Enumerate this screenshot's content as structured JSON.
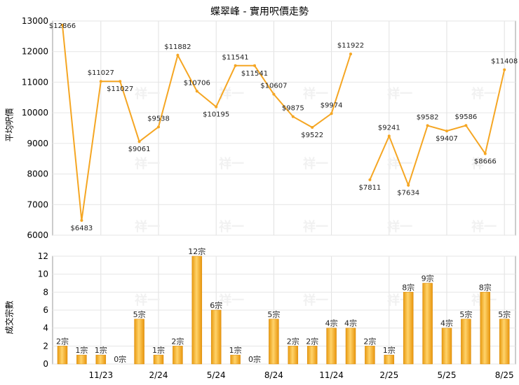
{
  "chart_data": [
    {
      "type": "line",
      "title": "蝶翠峰 - 實用呎價走勢",
      "ylabel": "平均呎價",
      "ylim": [
        6000,
        13000
      ],
      "yticks": [
        6000,
        7000,
        8000,
        9000,
        10000,
        11000,
        12000,
        13000
      ],
      "line_color": "#f5a623",
      "points": [
        {
          "x": 1,
          "y": 12866,
          "label": "$12866"
        },
        {
          "x": 2,
          "y": 6483,
          "label": "$6483"
        },
        {
          "x": 3,
          "y": 11027,
          "label": "$11027"
        },
        {
          "x": 4,
          "y": 11027,
          "label": "$11027"
        },
        {
          "x": 5,
          "y": 9061,
          "label": "$9061"
        },
        {
          "x": 6,
          "y": 9538,
          "label": "$9538"
        },
        {
          "x": 7,
          "y": 11882,
          "label": "$11882"
        },
        {
          "x": 8,
          "y": 10706,
          "label": "$10706"
        },
        {
          "x": 9,
          "y": 10195,
          "label": "$10195"
        },
        {
          "x": 10,
          "y": 11541,
          "label": "$11541"
        },
        {
          "x": 11,
          "y": 11541,
          "label": "$11541"
        },
        {
          "x": 12,
          "y": 10607,
          "label": "$10607"
        },
        {
          "x": 13,
          "y": 9875,
          "label": "$9875"
        },
        {
          "x": 14,
          "y": 9522,
          "label": "$9522"
        },
        {
          "x": 15,
          "y": 9974,
          "label": "$9974"
        },
        {
          "x": 16,
          "y": 11922,
          "label": "$11922"
        },
        {
          "x": 17,
          "y": 7811,
          "label": "$7811"
        },
        {
          "x": 18,
          "y": 9241,
          "label": "$9241"
        },
        {
          "x": 19,
          "y": 7634,
          "label": "$7634"
        },
        {
          "x": 20,
          "y": 9582,
          "label": "$9582"
        },
        {
          "x": 21,
          "y": 9407,
          "label": "$9407"
        },
        {
          "x": 22,
          "y": 9586,
          "label": "$9586"
        },
        {
          "x": 23,
          "y": 8666,
          "label": "$8666"
        },
        {
          "x": 24,
          "y": 11408,
          "label": "$11408"
        }
      ],
      "connected_ranges": [
        [
          1,
          16
        ],
        [
          17,
          24
        ]
      ],
      "watermark": "祥一"
    },
    {
      "type": "bar",
      "ylabel": "成交宗數",
      "ylim": [
        0,
        12
      ],
      "yticks": [
        0,
        2,
        4,
        6,
        8,
        10,
        12
      ],
      "bar_color": "#f5a623",
      "values": [
        2,
        1,
        1,
        0,
        5,
        1,
        2,
        12,
        6,
        1,
        0,
        5,
        2,
        2,
        4,
        4,
        2,
        1,
        8,
        9,
        4,
        5,
        8,
        5
      ],
      "labels": [
        "2宗",
        "1宗",
        "1宗",
        "0宗",
        "5宗",
        "1宗",
        "2宗",
        "12宗",
        "6宗",
        "1宗",
        "0宗",
        "5宗",
        "2宗",
        "2宗",
        "4宗",
        "4宗",
        "2宗",
        "1宗",
        "8宗",
        "9宗",
        "4宗",
        "5宗",
        "8宗",
        "5宗"
      ],
      "x_tick_labels": [
        {
          "x": 3,
          "label": "11/23"
        },
        {
          "x": 6,
          "label": "2/24"
        },
        {
          "x": 9,
          "label": "5/24"
        },
        {
          "x": 12,
          "label": "8/24"
        },
        {
          "x": 15,
          "label": "11/24"
        },
        {
          "x": 18,
          "label": "2/25"
        },
        {
          "x": 21,
          "label": "5/25"
        },
        {
          "x": 24,
          "label": "8/25"
        }
      ]
    }
  ]
}
